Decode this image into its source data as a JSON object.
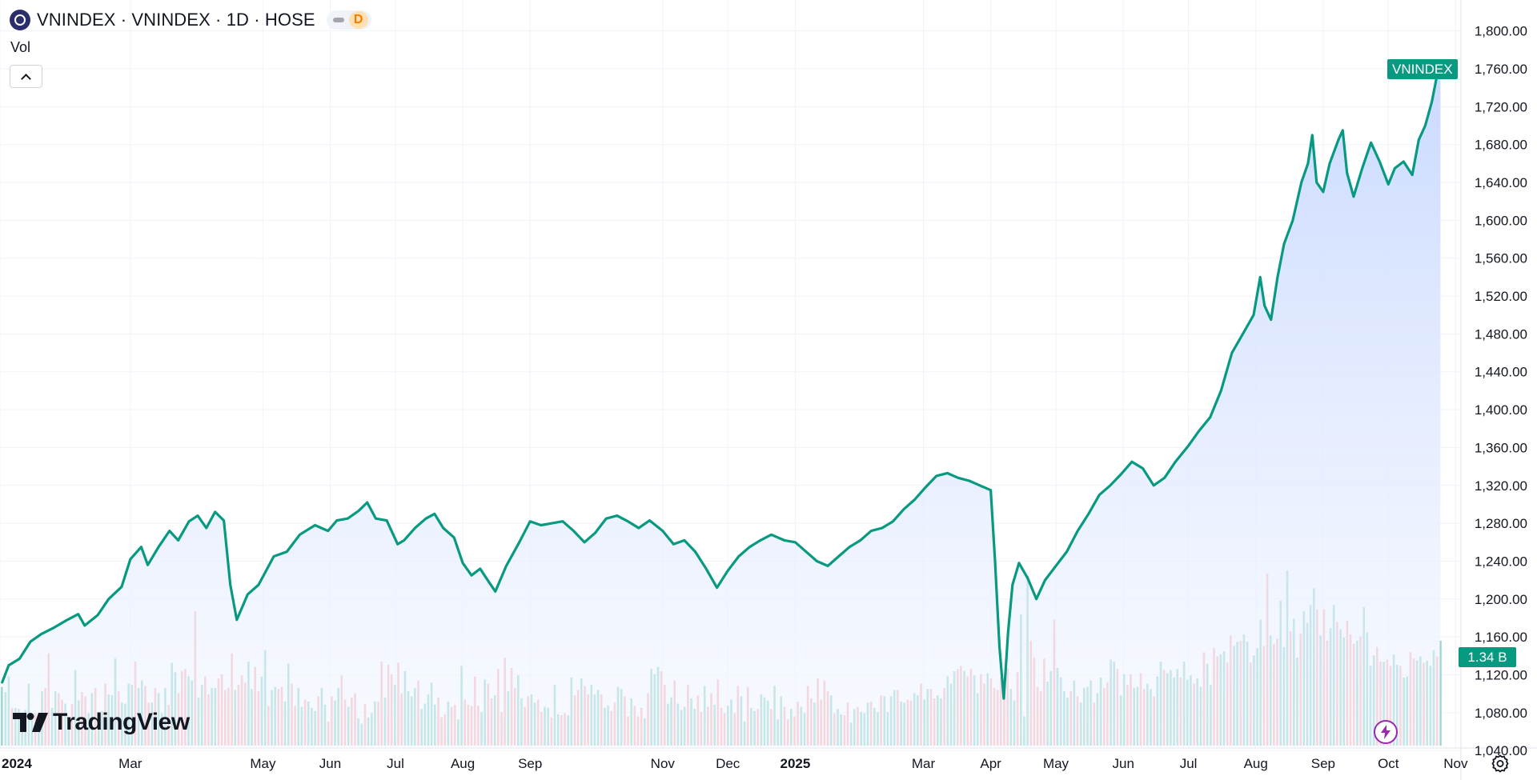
{
  "legend": {
    "title": "VNINDEX · VNINDEX · 1D · HOSE",
    "status_letter": "D"
  },
  "volume_label": "Vol",
  "brand": {
    "name": "TradingView"
  },
  "colors": {
    "line": "#089981",
    "area_top": "#c9d9ff",
    "area_bottom": "#f4f7ff",
    "vol_up": "#7fcdc2",
    "vol_down": "#f6a7aa",
    "grid": "#f0f3fa",
    "purple_accent": "#9c27b0"
  },
  "icons": {
    "symbol_logo": "vnindex-logo-icon",
    "collapse": "chevron-up-icon",
    "brand": "tradingview-logo-icon",
    "bolt": "lightning-bolt-icon",
    "settings": "gear-icon"
  },
  "chart_data": {
    "type": "area",
    "symbol": "VNINDEX",
    "interval": "1D",
    "exchange": "HOSE",
    "last_price_label": "VNINDEX",
    "last_volume_label": "1.34 B",
    "ylim": [
      1030,
      1820
    ],
    "y_ticks": [
      "1,800.00",
      "1,760.00",
      "1,720.00",
      "1,680.00",
      "1,640.00",
      "1,600.00",
      "1,560.00",
      "1,520.00",
      "1,480.00",
      "1,440.00",
      "1,400.00",
      "1,360.00",
      "1,320.00",
      "1,280.00",
      "1,240.00",
      "1,200.00",
      "1,160.00",
      "1,120.00",
      "1,080.00",
      "1,040.00"
    ],
    "y_tick_values": [
      1800,
      1760,
      1720,
      1680,
      1640,
      1600,
      1560,
      1520,
      1480,
      1440,
      1400,
      1360,
      1320,
      1280,
      1240,
      1200,
      1160,
      1120,
      1080,
      1040
    ],
    "xlim": [
      "2024-01-01",
      "2025-11-20"
    ],
    "x_ticks": [
      {
        "label": "2024",
        "date": "2024-01-01",
        "bold": true
      },
      {
        "label": "Mar",
        "date": "2024-03-01",
        "bold": false
      },
      {
        "label": "May",
        "date": "2024-05-01",
        "bold": false
      },
      {
        "label": "Jun",
        "date": "2024-06-01",
        "bold": false
      },
      {
        "label": "Jul",
        "date": "2024-07-01",
        "bold": false
      },
      {
        "label": "Aug",
        "date": "2024-08-01",
        "bold": false
      },
      {
        "label": "Sep",
        "date": "2024-09-01",
        "bold": false
      },
      {
        "label": "Nov",
        "date": "2024-11-01",
        "bold": false
      },
      {
        "label": "Dec",
        "date": "2024-12-01",
        "bold": false
      },
      {
        "label": "2025",
        "date": "2025-01-01",
        "bold": true
      },
      {
        "label": "Mar",
        "date": "2025-03-01",
        "bold": false
      },
      {
        "label": "Apr",
        "date": "2025-04-01",
        "bold": false
      },
      {
        "label": "May",
        "date": "2025-05-01",
        "bold": false
      },
      {
        "label": "Jun",
        "date": "2025-06-01",
        "bold": false
      },
      {
        "label": "Jul",
        "date": "2025-07-01",
        "bold": false
      },
      {
        "label": "Aug",
        "date": "2025-08-01",
        "bold": false
      },
      {
        "label": "Sep",
        "date": "2025-09-01",
        "bold": false
      },
      {
        "label": "Oct",
        "date": "2025-10-01",
        "bold": false
      },
      {
        "label": "Nov",
        "date": "2025-11-01",
        "bold": false
      }
    ],
    "price_series": [
      [
        "2024-01-02",
        1112
      ],
      [
        "2024-01-05",
        1130
      ],
      [
        "2024-01-10",
        1137
      ],
      [
        "2024-01-15",
        1155
      ],
      [
        "2024-01-20",
        1163
      ],
      [
        "2024-01-26",
        1170
      ],
      [
        "2024-02-01",
        1178
      ],
      [
        "2024-02-06",
        1184
      ],
      [
        "2024-02-09",
        1172
      ],
      [
        "2024-02-15",
        1183
      ],
      [
        "2024-02-20",
        1200
      ],
      [
        "2024-02-26",
        1213
      ],
      [
        "2024-03-01",
        1242
      ],
      [
        "2024-03-06",
        1255
      ],
      [
        "2024-03-09",
        1236
      ],
      [
        "2024-03-14",
        1255
      ],
      [
        "2024-03-19",
        1272
      ],
      [
        "2024-03-23",
        1262
      ],
      [
        "2024-03-28",
        1282
      ],
      [
        "2024-04-01",
        1288
      ],
      [
        "2024-04-05",
        1275
      ],
      [
        "2024-04-09",
        1292
      ],
      [
        "2024-04-13",
        1283
      ],
      [
        "2024-04-16",
        1215
      ],
      [
        "2024-04-19",
        1178
      ],
      [
        "2024-04-24",
        1205
      ],
      [
        "2024-04-29",
        1215
      ],
      [
        "2024-05-06",
        1245
      ],
      [
        "2024-05-12",
        1250
      ],
      [
        "2024-05-18",
        1268
      ],
      [
        "2024-05-25",
        1278
      ],
      [
        "2024-05-31",
        1272
      ],
      [
        "2024-06-04",
        1283
      ],
      [
        "2024-06-09",
        1285
      ],
      [
        "2024-06-14",
        1293
      ],
      [
        "2024-06-18",
        1302
      ],
      [
        "2024-06-22",
        1285
      ],
      [
        "2024-06-27",
        1283
      ],
      [
        "2024-07-02",
        1258
      ],
      [
        "2024-07-05",
        1262
      ],
      [
        "2024-07-10",
        1275
      ],
      [
        "2024-07-15",
        1285
      ],
      [
        "2024-07-19",
        1290
      ],
      [
        "2024-07-23",
        1275
      ],
      [
        "2024-07-28",
        1265
      ],
      [
        "2024-08-01",
        1238
      ],
      [
        "2024-08-05",
        1225
      ],
      [
        "2024-08-09",
        1232
      ],
      [
        "2024-08-13",
        1218
      ],
      [
        "2024-08-16",
        1208
      ],
      [
        "2024-08-21",
        1235
      ],
      [
        "2024-08-27",
        1260
      ],
      [
        "2024-09-01",
        1282
      ],
      [
        "2024-09-06",
        1278
      ],
      [
        "2024-09-11",
        1280
      ],
      [
        "2024-09-16",
        1282
      ],
      [
        "2024-09-21",
        1272
      ],
      [
        "2024-09-26",
        1260
      ],
      [
        "2024-10-01",
        1270
      ],
      [
        "2024-10-06",
        1285
      ],
      [
        "2024-10-11",
        1288
      ],
      [
        "2024-10-16",
        1282
      ],
      [
        "2024-10-21",
        1275
      ],
      [
        "2024-10-26",
        1283
      ],
      [
        "2024-11-01",
        1272
      ],
      [
        "2024-11-06",
        1258
      ],
      [
        "2024-11-11",
        1262
      ],
      [
        "2024-11-16",
        1250
      ],
      [
        "2024-11-21",
        1232
      ],
      [
        "2024-11-26",
        1212
      ],
      [
        "2024-12-01",
        1230
      ],
      [
        "2024-12-06",
        1245
      ],
      [
        "2024-12-11",
        1255
      ],
      [
        "2024-12-16",
        1262
      ],
      [
        "2024-12-21",
        1268
      ],
      [
        "2024-12-27",
        1262
      ],
      [
        "2025-01-01",
        1260
      ],
      [
        "2025-01-06",
        1250
      ],
      [
        "2025-01-11",
        1240
      ],
      [
        "2025-01-16",
        1235
      ],
      [
        "2025-01-21",
        1245
      ],
      [
        "2025-01-26",
        1255
      ],
      [
        "2025-01-31",
        1262
      ],
      [
        "2025-02-05",
        1272
      ],
      [
        "2025-02-10",
        1275
      ],
      [
        "2025-02-15",
        1282
      ],
      [
        "2025-02-20",
        1295
      ],
      [
        "2025-02-25",
        1305
      ],
      [
        "2025-03-02",
        1318
      ],
      [
        "2025-03-07",
        1330
      ],
      [
        "2025-03-12",
        1333
      ],
      [
        "2025-03-17",
        1328
      ],
      [
        "2025-03-22",
        1325
      ],
      [
        "2025-03-27",
        1320
      ],
      [
        "2025-04-01",
        1315
      ],
      [
        "2025-04-03",
        1240
      ],
      [
        "2025-04-05",
        1150
      ],
      [
        "2025-04-07",
        1095
      ],
      [
        "2025-04-09",
        1165
      ],
      [
        "2025-04-11",
        1215
      ],
      [
        "2025-04-14",
        1238
      ],
      [
        "2025-04-18",
        1222
      ],
      [
        "2025-04-22",
        1200
      ],
      [
        "2025-04-26",
        1220
      ],
      [
        "2025-05-01",
        1235
      ],
      [
        "2025-05-06",
        1250
      ],
      [
        "2025-05-11",
        1272
      ],
      [
        "2025-05-16",
        1290
      ],
      [
        "2025-05-21",
        1310
      ],
      [
        "2025-05-26",
        1320
      ],
      [
        "2025-05-31",
        1332
      ],
      [
        "2025-06-05",
        1345
      ],
      [
        "2025-06-10",
        1338
      ],
      [
        "2025-06-15",
        1320
      ],
      [
        "2025-06-20",
        1328
      ],
      [
        "2025-06-25",
        1345
      ],
      [
        "2025-07-01",
        1362
      ],
      [
        "2025-07-06",
        1378
      ],
      [
        "2025-07-11",
        1392
      ],
      [
        "2025-07-16",
        1420
      ],
      [
        "2025-07-21",
        1460
      ],
      [
        "2025-07-26",
        1480
      ],
      [
        "2025-07-31",
        1500
      ],
      [
        "2025-08-03",
        1540
      ],
      [
        "2025-08-05",
        1510
      ],
      [
        "2025-08-08",
        1495
      ],
      [
        "2025-08-11",
        1540
      ],
      [
        "2025-08-14",
        1575
      ],
      [
        "2025-08-18",
        1600
      ],
      [
        "2025-08-22",
        1640
      ],
      [
        "2025-08-25",
        1660
      ],
      [
        "2025-08-27",
        1690
      ],
      [
        "2025-08-29",
        1640
      ],
      [
        "2025-09-01",
        1630
      ],
      [
        "2025-09-04",
        1660
      ],
      [
        "2025-09-08",
        1685
      ],
      [
        "2025-09-10",
        1695
      ],
      [
        "2025-09-12",
        1650
      ],
      [
        "2025-09-15",
        1625
      ],
      [
        "2025-09-19",
        1655
      ],
      [
        "2025-09-23",
        1682
      ],
      [
        "2025-09-27",
        1662
      ],
      [
        "2025-10-01",
        1638
      ],
      [
        "2025-10-04",
        1655
      ],
      [
        "2025-10-08",
        1662
      ],
      [
        "2025-10-12",
        1648
      ],
      [
        "2025-10-15",
        1685
      ],
      [
        "2025-10-18",
        1700
      ],
      [
        "2025-10-21",
        1725
      ],
      [
        "2025-10-24",
        1760
      ],
      [
        "2025-10-25",
        1767
      ]
    ],
    "volume": {
      "start": "2024-01-02",
      "end": "2025-10-25",
      "max_bn": 1.8,
      "values_bn": [
        0.56,
        0.51,
        0.66,
        0.36,
        0.36,
        0.35,
        0.21,
        0.34,
        0.59,
        0.28,
        0.31,
        0.26,
        0.52,
        0.55,
        0.88,
        0.36,
        0.52,
        0.5,
        0.44,
        0.4,
        0.19,
        0.4,
        0.72,
        0.43,
        0.51,
        0.47,
        0.31,
        0.5,
        0.55,
        0.24,
        0.33,
        0.59,
        0.49,
        0.48,
        0.83,
        0.52,
        0.41,
        0.4,
        0.59,
        0.58,
        0.8,
        0.55,
        0.62,
        0.57,
        0.41,
        0.41,
        0.55,
        0.5,
        0.31,
        0.55,
        0.39,
        0.79,
        0.7,
        0.5,
        0.71,
        0.73,
        0.66,
        0.62,
        1.28,
        0.46,
        0.58,
        0.66,
        0.49,
        0.55,
        0.55,
        0.64,
        0.68,
        0.53,
        0.55,
        0.88,
        0.53,
        0.58,
        0.67,
        0.6,
        0.8,
        0.54,
        0.75,
        0.52,
        0.66,
        0.91,
        0.38,
        0.53,
        0.56,
        0.54,
        0.56,
        0.42,
        0.78,
        0.59,
        0.38,
        0.55,
        0.37,
        0.44,
        0.42,
        0.36,
        0.33,
        0.47,
        0.55,
        0.39,
        0.23,
        0.47,
        0.43,
        0.55,
        0.67,
        0.44,
        0.37,
        0.46,
        0.5,
        0.26,
        0.21,
        0.4,
        0.27,
        0.31,
        0.42,
        0.42,
        0.8,
        0.46,
        0.77,
        0.68,
        0.58,
        0.79,
        0.5,
        0.71,
        0.52,
        0.47,
        0.55,
        0.62,
        0.35,
        0.4,
        0.49,
        0.6,
        0.39,
        0.46,
        0.27,
        0.3,
        0.42,
        0.37,
        0.39,
        0.25,
        0.76,
        0.44,
        0.39,
        0.38,
        0.66,
        0.38,
        0.32,
        0.63,
        0.59,
        0.45,
        0.48,
        0.73,
        0.32,
        0.84,
        0.52,
        0.74,
        0.55,
        0.67,
        0.45,
        0.37,
        0.47,
        0.49,
        0.41,
        0.44,
        0.32,
        0.37,
        0.36,
        0.27,
        0.58,
        0.3,
        0.29,
        0.31,
        0.29,
        0.65,
        0.48,
        0.53,
        0.64,
        0.57,
        0.49,
        0.58,
        0.49,
        0.53,
        0.49,
        0.36,
        0.38,
        0.33,
        0.41,
        0.56,
        0.54,
        0.47,
        0.28,
        0.45,
        0.38,
        0.28,
        0.36,
        0.26,
        0.5,
        0.73,
        0.68,
        0.75,
        0.71,
        0.58,
        0.4,
        0.46,
        0.62,
        0.4,
        0.34,
        0.37,
        0.58,
        0.45,
        0.35,
        0.48,
        0.32,
        0.57,
        0.37,
        0.5,
        0.39,
        0.63,
        0.36,
        0.31,
        0.38,
        0.44,
        0.31,
        0.57,
        0.47,
        0.23,
        0.56,
        0.36,
        0.33,
        0.35,
        0.49,
        0.46,
        0.43,
        0.35,
        0.57,
        0.25,
        0.47,
        0.37,
        0.25,
        0.35,
        0.28,
        0.42,
        0.37,
        0.31,
        0.57,
        0.45,
        0.41,
        0.64,
        0.44,
        0.62,
        0.52,
        0.48,
        0.31,
        0.35,
        0.3,
        0.29,
        0.41,
        0.22,
        0.35,
        0.37,
        0.32,
        0.31,
        0.41,
        0.42,
        0.36,
        0.32,
        0.48,
        0.47,
        0.32,
        0.47,
        0.53,
        0.53,
        0.42,
        0.41,
        0.44,
        0.43,
        0.5,
        0.48,
        0.59,
        0.44,
        0.54,
        0.54,
        0.45,
        0.48,
        0.45,
        0.55,
        0.66,
        0.59,
        0.71,
        0.73,
        0.76,
        0.71,
        0.66,
        0.73,
        0.67,
        0.5,
        0.68,
        0.59,
        0.69,
        0.64,
        0.55,
        0.53,
        0.66,
        0.5,
        0.74,
        0.54,
        0.43,
        0.7,
        1.25,
        0.28,
        1.62,
        1.0,
        0.84,
        0.56,
        0.52,
        0.83,
        0.61,
        0.71,
        1.2,
        0.74,
        0.65,
        0.52,
        0.46,
        0.52,
        0.62,
        0.47,
        0.41,
        0.55,
        0.56,
        0.62,
        0.41,
        0.5,
        0.65,
        0.55,
        0.6,
        0.82,
        0.8,
        0.73,
        0.48,
        0.68,
        0.58,
        0.68,
        0.55,
        0.56,
        0.69,
        0.54,
        0.59,
        0.54,
        0.47,
        0.66,
        0.8,
        0.72,
        0.69,
        0.72,
        0.65,
        0.73,
        0.65,
        0.8,
        0.63,
        0.67,
        0.59,
        0.64,
        0.56,
        0.89,
        0.78,
        0.58,
        0.93,
        0.85,
        0.87,
        0.9,
        0.79,
        1.05,
        0.95,
        0.99,
        1.0,
        1.06,
        0.99,
        0.79,
        0.86,
        0.93,
        1.2,
        0.95,
        1.64,
        1.05,
        0.97,
        1.02,
        1.38,
        0.94,
        1.67,
        1.09,
        1.21,
        0.84,
        1.07,
        1.28,
        1.17,
        1.34,
        1.5,
        1.3,
        1.05,
        1.3,
        1.0,
        1.12,
        1.34,
        1.18,
        1.11,
        1.03,
        1.19,
        1.06,
        0.97,
        1.0,
        1.04,
        1.32,
        1.08,
        0.76,
        0.86,
        0.94,
        0.8,
        0.8,
        0.82,
        0.76,
        0.87,
        0.77,
        0.76,
        0.65,
        0.66,
        0.89,
        0.83,
        0.81,
        0.85,
        0.79,
        0.81,
        0.76,
        0.91,
        0.85,
        1.0
      ]
    }
  }
}
